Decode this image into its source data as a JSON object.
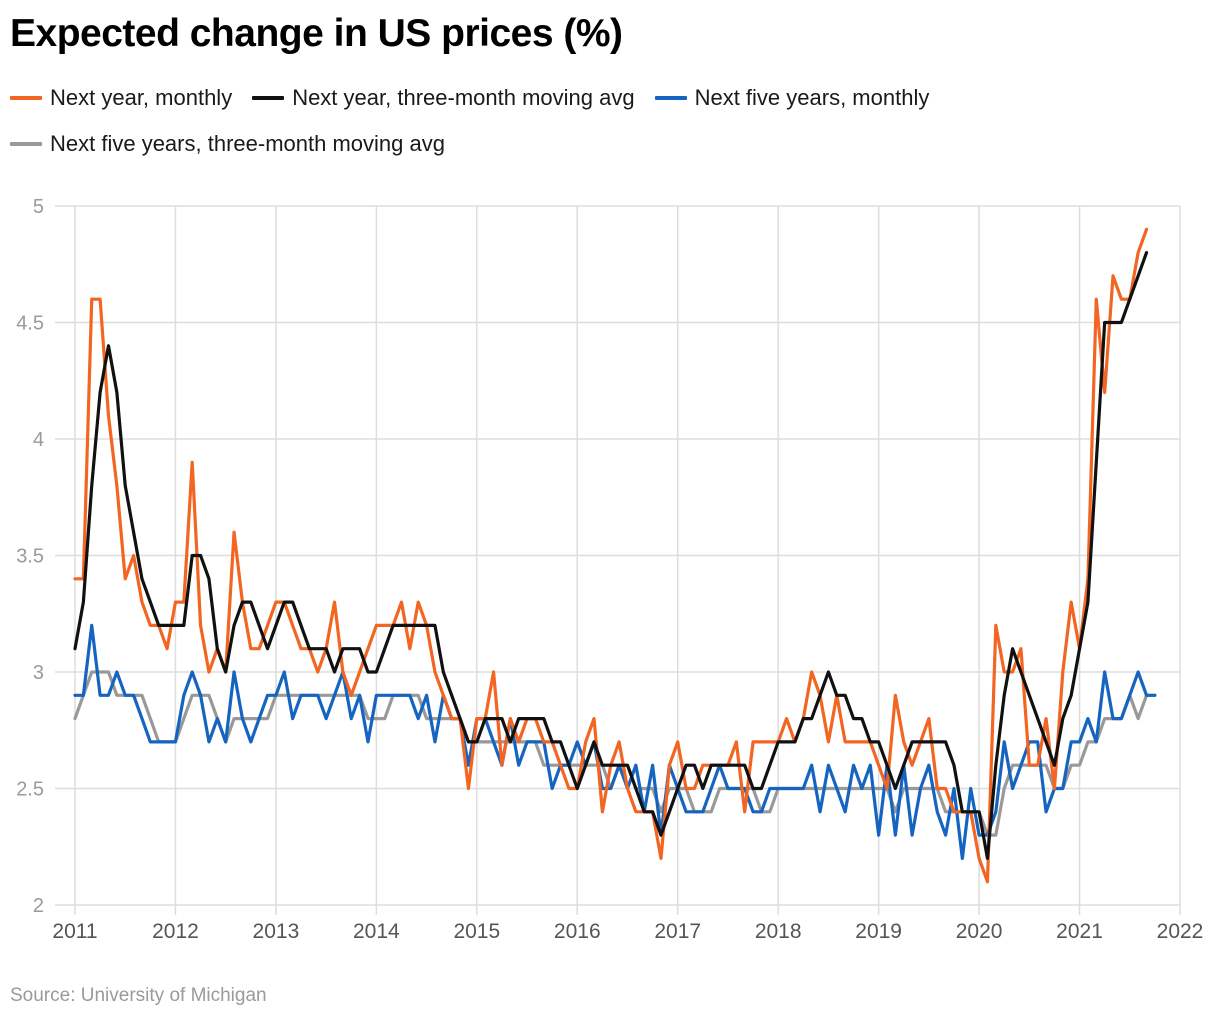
{
  "title": "Expected change in US prices (%)",
  "source": "Source: University of Michigan",
  "chart_data": {
    "type": "line",
    "title": "Expected change in US prices (%)",
    "xlabel": "",
    "ylabel": "",
    "x_ticks": [
      "2011",
      "2012",
      "2013",
      "2014",
      "2015",
      "2016",
      "2017",
      "2018",
      "2019",
      "2020",
      "2021",
      "2022"
    ],
    "y_ticks": [
      "2",
      "2.5",
      "3",
      "3.5",
      "4",
      "4.5",
      "5"
    ],
    "xlim": [
      2011,
      2022
    ],
    "ylim": [
      2,
      5
    ],
    "grid": true,
    "legend": "top",
    "start": "2011-01",
    "series": [
      {
        "name": "Next year, monthly",
        "color": "#f26522",
        "values": [
          3.4,
          3.4,
          4.6,
          4.6,
          4.1,
          3.8,
          3.4,
          3.5,
          3.3,
          3.2,
          3.2,
          3.1,
          3.3,
          3.3,
          3.9,
          3.2,
          3.0,
          3.1,
          3.0,
          3.6,
          3.3,
          3.1,
          3.1,
          3.2,
          3.3,
          3.3,
          3.2,
          3.1,
          3.1,
          3.0,
          3.1,
          3.3,
          3.0,
          2.9,
          3.0,
          3.1,
          3.2,
          3.2,
          3.2,
          3.3,
          3.1,
          3.3,
          3.2,
          3.0,
          2.9,
          2.8,
          2.8,
          2.5,
          2.8,
          2.8,
          3.0,
          2.6,
          2.8,
          2.7,
          2.8,
          2.8,
          2.7,
          2.7,
          2.6,
          2.5,
          2.5,
          2.7,
          2.8,
          2.4,
          2.6,
          2.7,
          2.5,
          2.4,
          2.4,
          2.4,
          2.2,
          2.6,
          2.7,
          2.5,
          2.5,
          2.6,
          2.6,
          2.6,
          2.6,
          2.7,
          2.4,
          2.7,
          2.7,
          2.7,
          2.7,
          2.8,
          2.7,
          2.8,
          3.0,
          2.9,
          2.7,
          2.9,
          2.7,
          2.7,
          2.7,
          2.7,
          2.6,
          2.5,
          2.9,
          2.7,
          2.6,
          2.7,
          2.8,
          2.5,
          2.5,
          2.4,
          2.4,
          2.4,
          2.2,
          2.1,
          3.2,
          3.0,
          3.0,
          3.1,
          2.6,
          2.6,
          2.8,
          2.5,
          3.0,
          3.3,
          3.1,
          3.4,
          4.6,
          4.2,
          4.7,
          4.6,
          4.6,
          4.8,
          4.9
        ]
      },
      {
        "name": "Next year, three-month moving avg",
        "color": "#111111",
        "values": [
          3.1,
          3.3,
          3.8,
          4.2,
          4.4,
          4.2,
          3.8,
          3.6,
          3.4,
          3.3,
          3.2,
          3.2,
          3.2,
          3.2,
          3.5,
          3.5,
          3.4,
          3.1,
          3.0,
          3.2,
          3.3,
          3.3,
          3.2,
          3.1,
          3.2,
          3.3,
          3.3,
          3.2,
          3.1,
          3.1,
          3.1,
          3.0,
          3.1,
          3.1,
          3.1,
          3.0,
          3.0,
          3.1,
          3.2,
          3.2,
          3.2,
          3.2,
          3.2,
          3.2,
          3.0,
          2.9,
          2.8,
          2.7,
          2.7,
          2.8,
          2.8,
          2.8,
          2.7,
          2.8,
          2.8,
          2.8,
          2.8,
          2.7,
          2.7,
          2.6,
          2.5,
          2.6,
          2.7,
          2.6,
          2.6,
          2.6,
          2.6,
          2.5,
          2.4,
          2.4,
          2.3,
          2.4,
          2.5,
          2.6,
          2.6,
          2.5,
          2.6,
          2.6,
          2.6,
          2.6,
          2.6,
          2.5,
          2.5,
          2.6,
          2.7,
          2.7,
          2.7,
          2.8,
          2.8,
          2.9,
          3.0,
          2.9,
          2.9,
          2.8,
          2.8,
          2.7,
          2.7,
          2.6,
          2.5,
          2.6,
          2.7,
          2.7,
          2.7,
          2.7,
          2.7,
          2.6,
          2.4,
          2.4,
          2.4,
          2.2,
          2.6,
          2.9,
          3.1,
          3.0,
          2.9,
          2.8,
          2.7,
          2.6,
          2.8,
          2.9,
          3.1,
          3.3,
          3.9,
          4.5,
          4.5,
          4.5,
          4.6,
          4.7,
          4.8
        ]
      },
      {
        "name": "Next five years, monthly",
        "color": "#1565c0",
        "values": [
          2.9,
          2.9,
          3.2,
          2.9,
          2.9,
          3.0,
          2.9,
          2.9,
          2.8,
          2.7,
          2.7,
          2.7,
          2.7,
          2.9,
          3.0,
          2.9,
          2.7,
          2.8,
          2.7,
          3.0,
          2.8,
          2.7,
          2.8,
          2.9,
          2.9,
          3.0,
          2.8,
          2.9,
          2.9,
          2.9,
          2.8,
          2.9,
          3.0,
          2.8,
          2.9,
          2.7,
          2.9,
          2.9,
          2.9,
          2.9,
          2.9,
          2.8,
          2.9,
          2.7,
          2.9,
          2.8,
          2.8,
          2.6,
          2.8,
          2.8,
          2.7,
          2.6,
          2.8,
          2.6,
          2.7,
          2.7,
          2.7,
          2.5,
          2.6,
          2.6,
          2.7,
          2.6,
          2.7,
          2.5,
          2.5,
          2.6,
          2.5,
          2.6,
          2.4,
          2.6,
          2.3,
          2.6,
          2.5,
          2.4,
          2.4,
          2.4,
          2.5,
          2.6,
          2.5,
          2.5,
          2.5,
          2.4,
          2.4,
          2.5,
          2.5,
          2.5,
          2.5,
          2.5,
          2.6,
          2.4,
          2.6,
          2.5,
          2.4,
          2.6,
          2.5,
          2.6,
          2.3,
          2.6,
          2.3,
          2.6,
          2.3,
          2.5,
          2.6,
          2.4,
          2.3,
          2.5,
          2.2,
          2.5,
          2.3,
          2.3,
          2.4,
          2.7,
          2.5,
          2.6,
          2.7,
          2.7,
          2.4,
          2.5,
          2.5,
          2.7,
          2.7,
          2.8,
          2.7,
          3.0,
          2.8,
          2.8,
          2.9,
          3.0,
          2.9,
          2.9
        ]
      },
      {
        "name": "Next five years, three-month moving avg",
        "color": "#999999",
        "values": [
          2.8,
          2.9,
          3.0,
          3.0,
          3.0,
          2.9,
          2.9,
          2.9,
          2.9,
          2.8,
          2.7,
          2.7,
          2.7,
          2.8,
          2.9,
          2.9,
          2.9,
          2.8,
          2.7,
          2.8,
          2.8,
          2.8,
          2.8,
          2.8,
          2.9,
          2.9,
          2.9,
          2.9,
          2.9,
          2.9,
          2.9,
          2.9,
          2.9,
          2.9,
          2.9,
          2.8,
          2.8,
          2.8,
          2.9,
          2.9,
          2.9,
          2.9,
          2.8,
          2.8,
          2.8,
          2.8,
          2.8,
          2.7,
          2.7,
          2.7,
          2.7,
          2.7,
          2.7,
          2.7,
          2.7,
          2.7,
          2.6,
          2.6,
          2.6,
          2.6,
          2.6,
          2.6,
          2.6,
          2.6,
          2.5,
          2.6,
          2.6,
          2.5,
          2.5,
          2.5,
          2.4,
          2.5,
          2.5,
          2.5,
          2.4,
          2.4,
          2.4,
          2.5,
          2.5,
          2.5,
          2.5,
          2.5,
          2.4,
          2.4,
          2.5,
          2.5,
          2.5,
          2.5,
          2.5,
          2.5,
          2.5,
          2.5,
          2.5,
          2.5,
          2.5,
          2.5,
          2.5,
          2.5,
          2.4,
          2.5,
          2.5,
          2.5,
          2.5,
          2.5,
          2.4,
          2.4,
          2.4,
          2.4,
          2.4,
          2.3,
          2.3,
          2.5,
          2.6,
          2.6,
          2.6,
          2.6,
          2.6,
          2.5,
          2.5,
          2.6,
          2.6,
          2.7,
          2.7,
          2.8,
          2.8,
          2.8,
          2.9,
          2.8,
          2.9,
          2.9
        ]
      }
    ]
  }
}
